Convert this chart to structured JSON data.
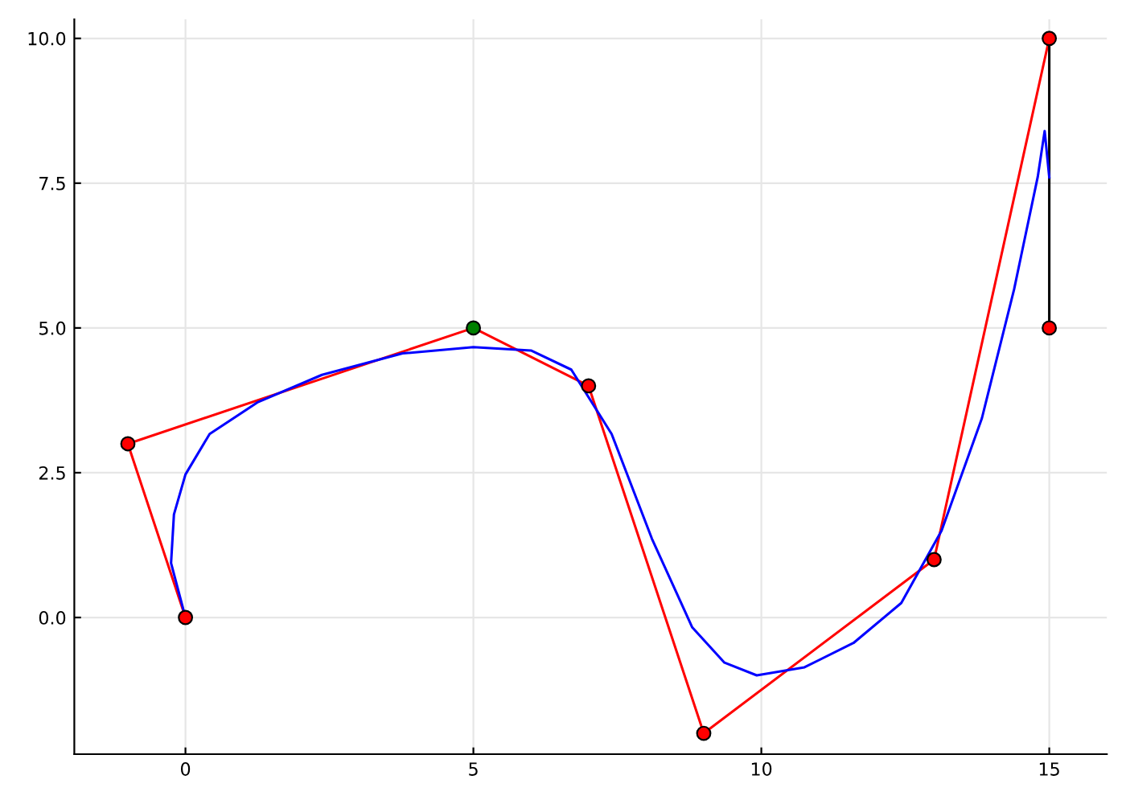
{
  "chart_data": {
    "type": "line",
    "xlim": [
      -1.93,
      16.0
    ],
    "ylim": [
      -2.36,
      10.33
    ],
    "xticks": [
      0,
      5,
      10,
      15
    ],
    "yticks": [
      {
        "value": 0,
        "label": "0.0"
      },
      {
        "value": 2.5,
        "label": "2.5"
      },
      {
        "value": 5,
        "label": "5.0"
      },
      {
        "value": 7.5,
        "label": "7.5"
      },
      {
        "value": 10,
        "label": "10.0"
      }
    ],
    "grid": true,
    "series": [
      {
        "color": "#ff0000",
        "marker": "none",
        "x": [
          0,
          -1,
          5,
          7,
          9,
          13,
          15
        ],
        "values": [
          0,
          3,
          5,
          4,
          -2,
          1,
          10
        ]
      },
      {
        "color": "#000000",
        "marker": "none",
        "x": [
          15,
          15
        ],
        "values": [
          10,
          5
        ]
      },
      {
        "color": "#0000ff",
        "marker": "none",
        "x": [
          0,
          -0.25,
          -0.2,
          0,
          0.42,
          1.26,
          2.37,
          3.77,
          5,
          6.0,
          6.7,
          7.4,
          8.1,
          8.8,
          9.36,
          9.92,
          10.75,
          11.6,
          12.43,
          13.13,
          13.83,
          14.39,
          14.8,
          14.92,
          15
        ],
        "values": [
          0,
          0.94,
          1.78,
          2.47,
          3.17,
          3.72,
          4.19,
          4.56,
          4.67,
          4.61,
          4.28,
          3.17,
          1.36,
          -0.17,
          -0.78,
          -1.0,
          -0.86,
          -0.44,
          0.25,
          1.5,
          3.44,
          5.67,
          7.61,
          8.4,
          7.6
        ]
      },
      {
        "type": "scatter",
        "marker": "circle",
        "x": [
          0,
          -1,
          5,
          7,
          9,
          13,
          15,
          15
        ],
        "values": [
          0,
          3,
          5,
          4,
          -2,
          1,
          10,
          5
        ],
        "colors": [
          "#ff0000",
          "#ff0000",
          "#008000",
          "#ff0000",
          "#ff0000",
          "#ff0000",
          "#ff0000",
          "#ff0000"
        ]
      }
    ]
  }
}
